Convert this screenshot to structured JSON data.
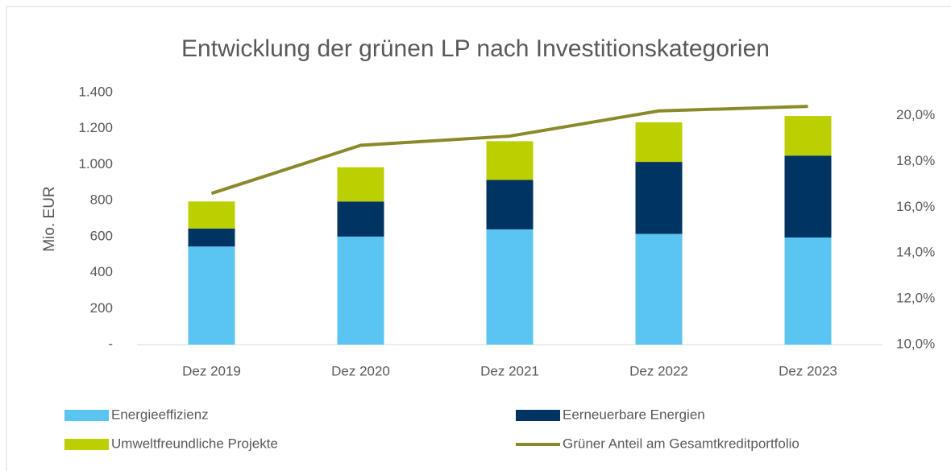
{
  "chart_data": {
    "type": "bar",
    "stacked": true,
    "title": "Entwicklung der grünen LP nach Investitionskategorien",
    "ylabel": "Mio. EUR",
    "categories": [
      "Dez 2019",
      "Dez 2020",
      "Dez 2021",
      "Dez 2022",
      "Dez 2023"
    ],
    "series": [
      {
        "name": "Energieeffizienz",
        "type": "bar",
        "color": "#5bc5f2",
        "values": [
          545,
          600,
          640,
          615,
          595
        ]
      },
      {
        "name": "Eerneuerbare Energien",
        "type": "bar",
        "color": "#003462",
        "values": [
          100,
          195,
          275,
          400,
          455
        ]
      },
      {
        "name": "Umweltfreundliche Projekte",
        "type": "bar",
        "color": "#bccf00",
        "values": [
          150,
          190,
          215,
          220,
          220
        ]
      },
      {
        "name": "Grüner Anteil am Gesamtkreditportfolio",
        "type": "line",
        "axis": "y2",
        "color": "#8a8a2a",
        "values": [
          16.6,
          18.7,
          19.1,
          20.2,
          20.4
        ]
      }
    ],
    "ylim": [
      0,
      1400
    ],
    "yticks": [
      {
        "value": 0,
        "label": "-"
      },
      200,
      400,
      600,
      800,
      {
        "value": 1000,
        "label": "1.000"
      },
      {
        "value": 1200,
        "label": "1.200"
      },
      {
        "value": 1400,
        "label": "1.400"
      }
    ],
    "y2lim": [
      10,
      21
    ],
    "y2ticks": [
      {
        "value": 10,
        "label": "10,0%"
      },
      {
        "value": 12,
        "label": "12,0%"
      },
      {
        "value": 14,
        "label": "14,0%"
      },
      {
        "value": 16,
        "label": "16,0%"
      },
      {
        "value": 18,
        "label": "18,0%"
      },
      {
        "value": 20,
        "label": "20,0%"
      }
    ],
    "grid": false
  }
}
